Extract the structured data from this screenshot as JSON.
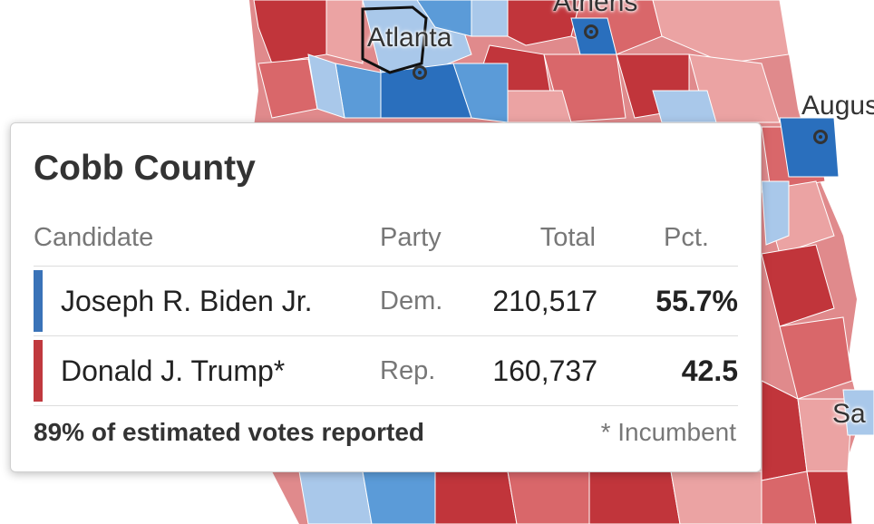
{
  "map": {
    "cities": [
      {
        "name": "Athens"
      },
      {
        "name": "Atlanta"
      },
      {
        "name": "Augus"
      },
      {
        "name": "Sa"
      }
    ],
    "colors": {
      "dem_dark": "#2a6fbd",
      "dem_mid": "#5b9bd8",
      "dem_light": "#a9c8ea",
      "rep_dark": "#c1353b",
      "rep_mid": "#d9676a",
      "rep_light": "#eba3a3",
      "border": "#ffffff"
    }
  },
  "tooltip": {
    "county": "Cobb County",
    "headers": {
      "candidate": "Candidate",
      "party": "Party",
      "total": "Total",
      "pct": "Pct."
    },
    "rows": [
      {
        "candidate": "Joseph R. Biden Jr.",
        "party": "Dem.",
        "total": "210,517",
        "pct": "55.7%",
        "color": "#3a73b8"
      },
      {
        "candidate": "Donald J. Trump*",
        "party": "Rep.",
        "total": "160,737",
        "pct": "42.5",
        "color": "#c0393e"
      }
    ],
    "reported": "89% of estimated votes reported",
    "incumbent_note": "* Incumbent"
  }
}
